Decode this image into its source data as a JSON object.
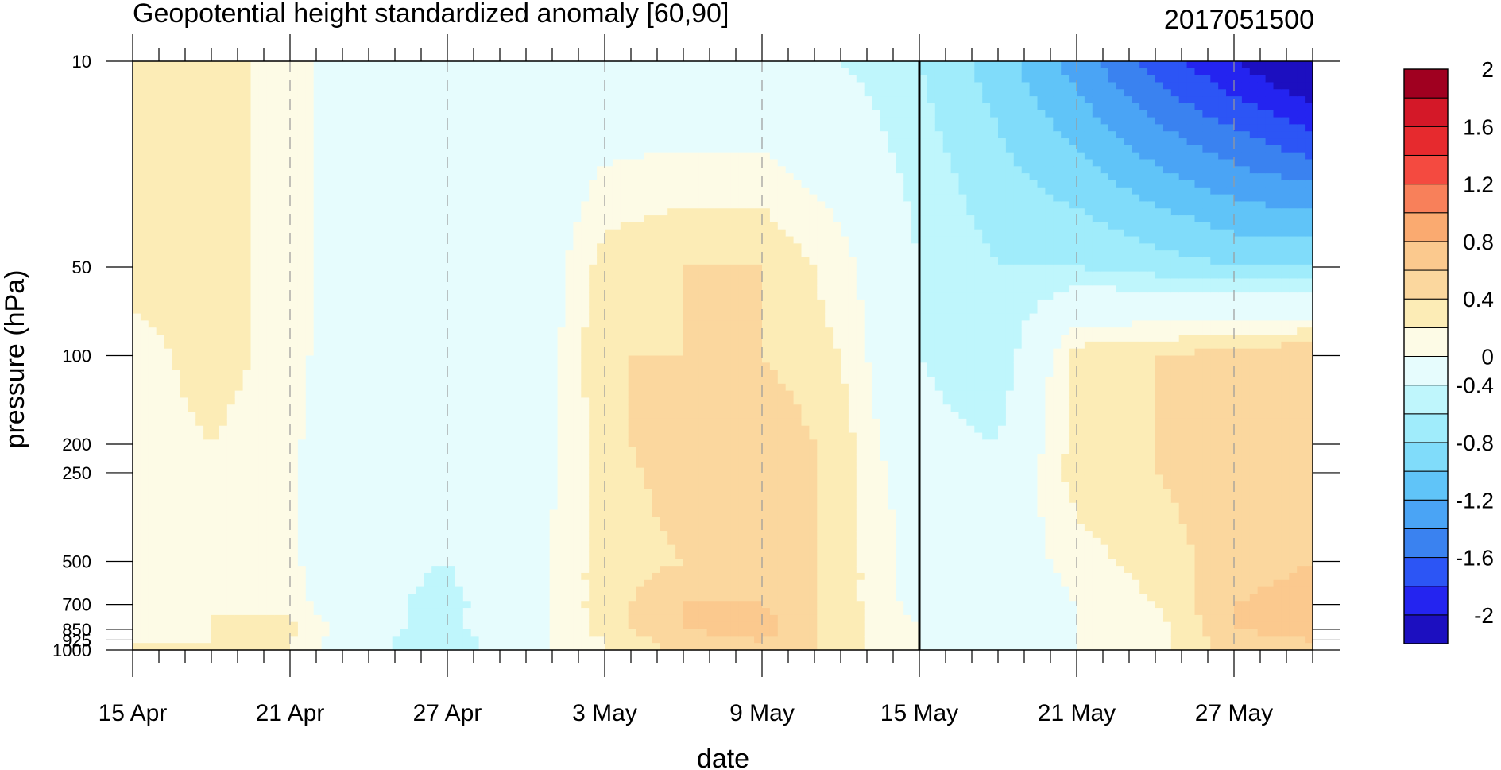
{
  "chart_data": {
    "type": "heatmap",
    "title": "Geopotential height standardized anomaly [60,90]",
    "date_stamp": "2017051500",
    "xlabel": "date",
    "ylabel": "pressure (hPa)",
    "x_range_days": [
      0,
      45
    ],
    "x_ticks": [
      {
        "day": 0,
        "label": "15 Apr"
      },
      {
        "day": 6,
        "label": "21 Apr"
      },
      {
        "day": 12,
        "label": "27 Apr"
      },
      {
        "day": 18,
        "label": "3 May"
      },
      {
        "day": 24,
        "label": "9 May"
      },
      {
        "day": 30,
        "label": "15 May"
      },
      {
        "day": 36,
        "label": "21 May"
      },
      {
        "day": 42,
        "label": "27 May"
      }
    ],
    "forecast_start_day": 30,
    "y_scale": "log",
    "y_range": [
      1000,
      10
    ],
    "y_ticks": [
      {
        "value": 10,
        "label": "10"
      },
      {
        "value": 50,
        "label": "50"
      },
      {
        "value": 100,
        "label": "100"
      },
      {
        "value": 200,
        "label": "200"
      },
      {
        "value": 250,
        "label": "250"
      },
      {
        "value": 500,
        "label": "500"
      },
      {
        "value": 700,
        "label": "700"
      },
      {
        "value": 850,
        "label": "850"
      },
      {
        "value": 925,
        "label": "925"
      },
      {
        "value": 1000,
        "label": "1000"
      }
    ],
    "levels": [
      10,
      50,
      100,
      200,
      250,
      500,
      700,
      850,
      925,
      1000
    ],
    "colorbar": {
      "colors": [
        "#1c0fc0",
        "#2424f0",
        "#2c55f5",
        "#3a82f0",
        "#4aa4f5",
        "#60c4f8",
        "#80dcfa",
        "#a0ecfb",
        "#bff6fc",
        "#e6fcfd",
        "#fdfbe6",
        "#fcecb6",
        "#fbd79e",
        "#fbc98e",
        "#faaa70",
        "#f8805a",
        "#f44a40",
        "#e62a2e",
        "#d41828",
        "#a00020"
      ],
      "boundaries": [
        -2.2,
        -2.0,
        -1.8,
        -1.6,
        -1.4,
        -1.2,
        -1.0,
        -0.8,
        -0.6,
        -0.4,
        0.0,
        0.2,
        0.4,
        0.6,
        0.8,
        1.0,
        1.2,
        1.4,
        1.6,
        1.8,
        2.0
      ],
      "labels": [
        {
          "value": 2.0,
          "label": "2"
        },
        {
          "value": 1.6,
          "label": "1.6"
        },
        {
          "value": 1.2,
          "label": "1.2"
        },
        {
          "value": 0.8,
          "label": "0.8"
        },
        {
          "value": 0.4,
          "label": "0.4"
        },
        {
          "value": 0.0,
          "label": "0"
        },
        {
          "value": -0.4,
          "label": "-0.4"
        },
        {
          "value": -0.8,
          "label": "-0.8"
        },
        {
          "value": -1.2,
          "label": "-1.2"
        },
        {
          "value": -1.6,
          "label": "-1.6"
        },
        {
          "value": -2.0,
          "label": "-2"
        }
      ]
    },
    "anomaly_grid": {
      "days": [
        0,
        3,
        6,
        9,
        12,
        15,
        18,
        21,
        24,
        27,
        30,
        33,
        36,
        39,
        42,
        45
      ],
      "levels": [
        10,
        50,
        100,
        200,
        250,
        500,
        700,
        850,
        925,
        1000
      ],
      "values": [
        [
          0.3,
          0.3,
          0.1,
          -0.3,
          -0.3,
          -0.3,
          -0.3,
          -0.3,
          -0.3,
          -0.4,
          -0.6,
          -0.9,
          -1.3,
          -1.7,
          -2.0,
          -2.3
        ],
        [
          0.3,
          0.3,
          0.1,
          -0.3,
          -0.3,
          -0.3,
          0.3,
          0.4,
          0.4,
          0.1,
          -0.4,
          -0.6,
          -0.6,
          -0.7,
          -0.8,
          -0.8
        ],
        [
          0.1,
          0.3,
          0.1,
          -0.3,
          -0.3,
          -0.3,
          0.4,
          0.4,
          0.4,
          0.2,
          -0.4,
          -0.6,
          0.3,
          0.4,
          0.5,
          0.6
        ],
        [
          0.1,
          0.2,
          0.05,
          -0.3,
          -0.4,
          -0.2,
          0.3,
          0.6,
          0.6,
          0.3,
          -0.3,
          -0.4,
          0.3,
          0.4,
          0.5,
          0.6
        ],
        [
          0.1,
          0.2,
          0.05,
          -0.3,
          -0.4,
          -0.2,
          0.3,
          0.5,
          0.6,
          0.3,
          -0.2,
          -0.3,
          0.3,
          0.4,
          0.5,
          0.6
        ],
        [
          0.1,
          0.15,
          0.05,
          -0.3,
          -0.4,
          -0.1,
          0.3,
          0.4,
          0.6,
          0.3,
          -0.1,
          -0.2,
          0.1,
          0.3,
          0.5,
          0.6
        ],
        [
          0.1,
          0.2,
          0.1,
          -0.3,
          -0.5,
          -0.1,
          0.3,
          0.6,
          0.6,
          0.3,
          -0.1,
          -0.3,
          0.0,
          0.2,
          0.6,
          0.7
        ],
        [
          0.1,
          0.2,
          0.3,
          -0.3,
          -0.5,
          -0.1,
          0.3,
          0.6,
          0.7,
          0.3,
          0.0,
          -0.2,
          0.0,
          0.1,
          0.6,
          0.7
        ],
        [
          0.2,
          0.2,
          0.2,
          -0.3,
          -0.6,
          -0.1,
          0.2,
          0.5,
          0.6,
          0.3,
          0.0,
          -0.1,
          0.0,
          0.1,
          0.5,
          0.6
        ],
        [
          0.2,
          0.2,
          0.2,
          -0.3,
          -0.6,
          -0.1,
          0.2,
          0.5,
          0.6,
          0.3,
          0.0,
          -0.1,
          0.0,
          0.1,
          0.5,
          0.6
        ]
      ]
    }
  }
}
